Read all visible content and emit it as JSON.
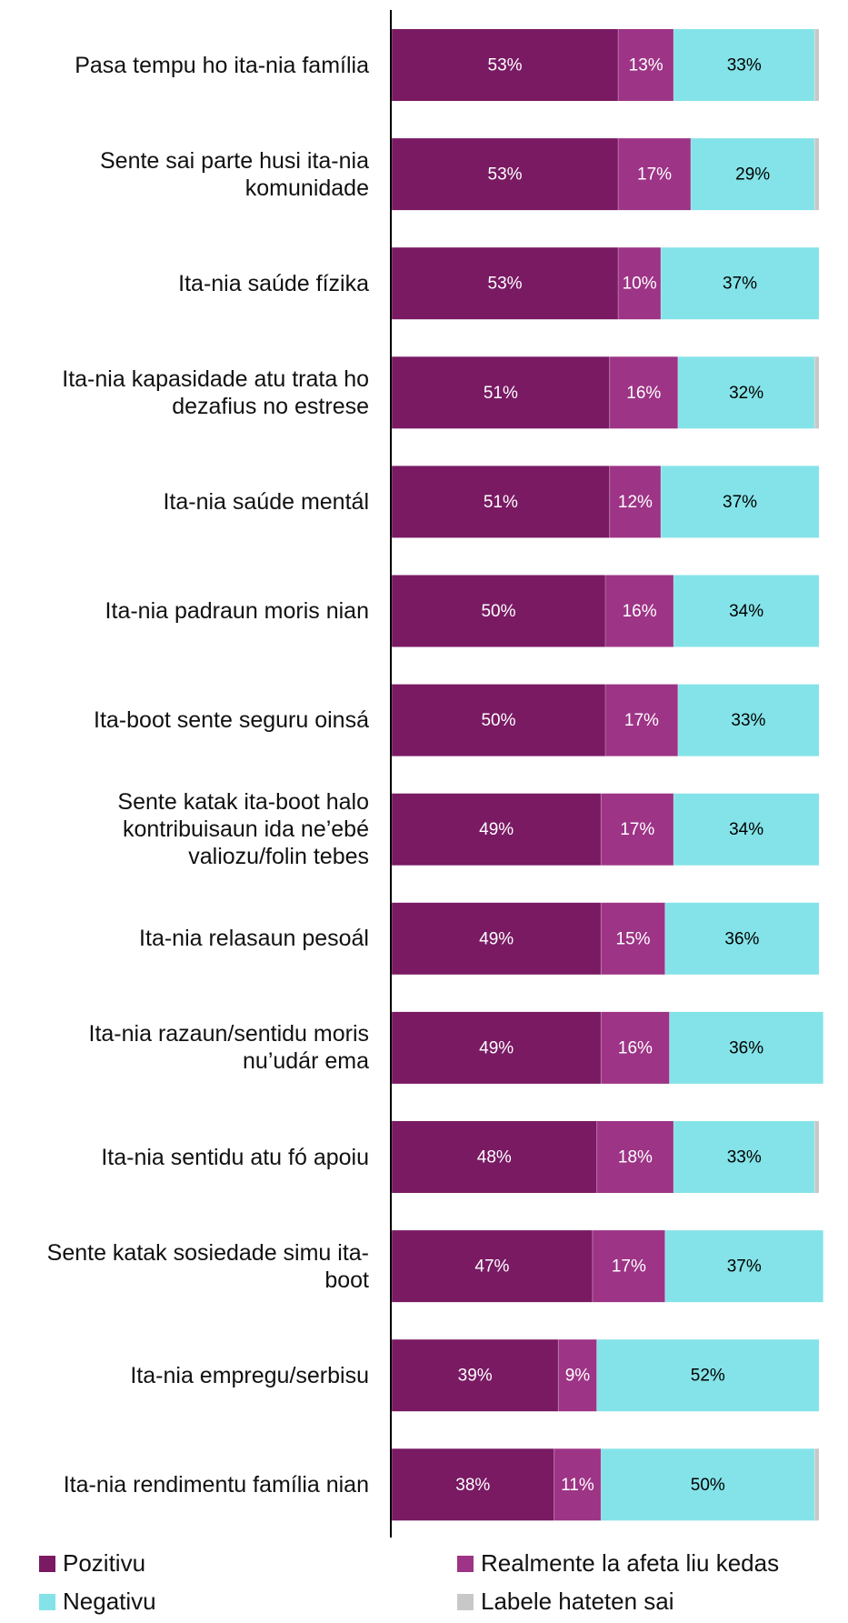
{
  "chart_data": {
    "type": "stacked-bar-horizontal",
    "categories": [
      "Pasa tempu ho ita-nia família",
      "Sente sai parte husi ita-nia komunidade",
      "Ita-nia saúde fízika",
      "Ita-nia kapasidade atu trata ho dezafius no estrese",
      "Ita-nia saúde mentál",
      "Ita-nia padraun moris nian",
      "Ita-boot sente seguru oinsá",
      "Sente katak ita-boot halo kontribuisaun ida ne’ebé valiozu/folin tebes",
      "Ita-nia relasaun pesoál",
      "Ita-nia razaun/sentidu moris nu’udár ema",
      "Ita-nia sentidu atu fó apoiu",
      "Sente katak sosiedade simu ita-boot",
      "Ita-nia empregu/serbisu",
      "Ita-nia rendimentu família nian"
    ],
    "series": [
      {
        "name": "Pozitivu",
        "color": "#791a63",
        "label_color": "#ffffff",
        "values": [
          53,
          53,
          53,
          51,
          51,
          50,
          50,
          49,
          49,
          49,
          48,
          47,
          39,
          38
        ],
        "value_labels": [
          "53%",
          "53%",
          "53%",
          "51%",
          "51%",
          "50%",
          "50%",
          "49%",
          "49%",
          "49%",
          "48%",
          "47%",
          "39%",
          "38%"
        ]
      },
      {
        "name": "Realmente la afeta liu kedas",
        "color": "#9d3486",
        "label_color": "#ffffff",
        "values": [
          13,
          17,
          10,
          16,
          12,
          16,
          17,
          17,
          15,
          16,
          18,
          17,
          9,
          11
        ],
        "value_labels": [
          "13%",
          "17%",
          "10%",
          "16%",
          "12%",
          "16%",
          "17%",
          "17%",
          "15%",
          "16%",
          "18%",
          "17%",
          "9%",
          "11%"
        ]
      },
      {
        "name": "Negativu",
        "color": "#84e3e8",
        "label_color": "#000000",
        "values": [
          33,
          29,
          37,
          32,
          37,
          34,
          33,
          34,
          36,
          36,
          33,
          37,
          52,
          50
        ],
        "value_labels": [
          "33%",
          "29%",
          "37%",
          "32%",
          "37%",
          "34%",
          "33%",
          "34%",
          "36%",
          "36%",
          "33%",
          "37%",
          "52%",
          "50%"
        ]
      },
      {
        "name": "Labele hateten sai",
        "color": "#c8c8c8",
        "values": [
          1,
          1,
          0,
          1,
          0,
          0,
          0,
          0,
          0,
          0,
          1,
          0,
          0,
          1
        ]
      }
    ],
    "xlim": [
      0,
      100
    ]
  }
}
